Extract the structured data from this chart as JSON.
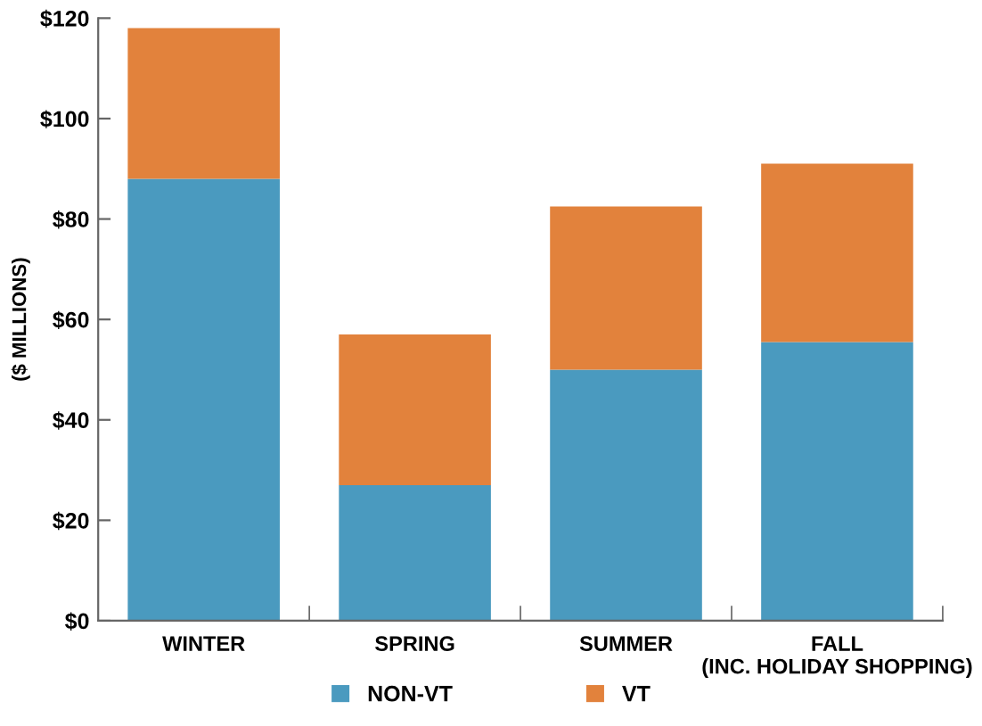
{
  "chart_data": {
    "type": "bar",
    "stacked": true,
    "ylabel": "($ MILLIONS)",
    "categories": [
      "WINTER",
      "SPRING",
      "SUMMER",
      "FALL\n(INC. HOLIDAY SHOPPING)"
    ],
    "series": [
      {
        "name": "NON-VT",
        "color": "#4a9abf",
        "values": [
          88,
          27,
          50,
          55.5
        ]
      },
      {
        "name": "VT",
        "color": "#e2823c",
        "values": [
          30,
          30,
          32.5,
          35.5
        ]
      }
    ],
    "ylim": [
      0,
      120
    ],
    "yticks": [
      {
        "value": 0,
        "label": "$0"
      },
      {
        "value": 20,
        "label": "$20"
      },
      {
        "value": 40,
        "label": "$40"
      },
      {
        "value": 60,
        "label": "$60"
      },
      {
        "value": 80,
        "label": "$80"
      },
      {
        "value": 100,
        "label": "$100"
      },
      {
        "value": 120,
        "label": "$120"
      }
    ],
    "grid": false,
    "legend": "bottom"
  }
}
